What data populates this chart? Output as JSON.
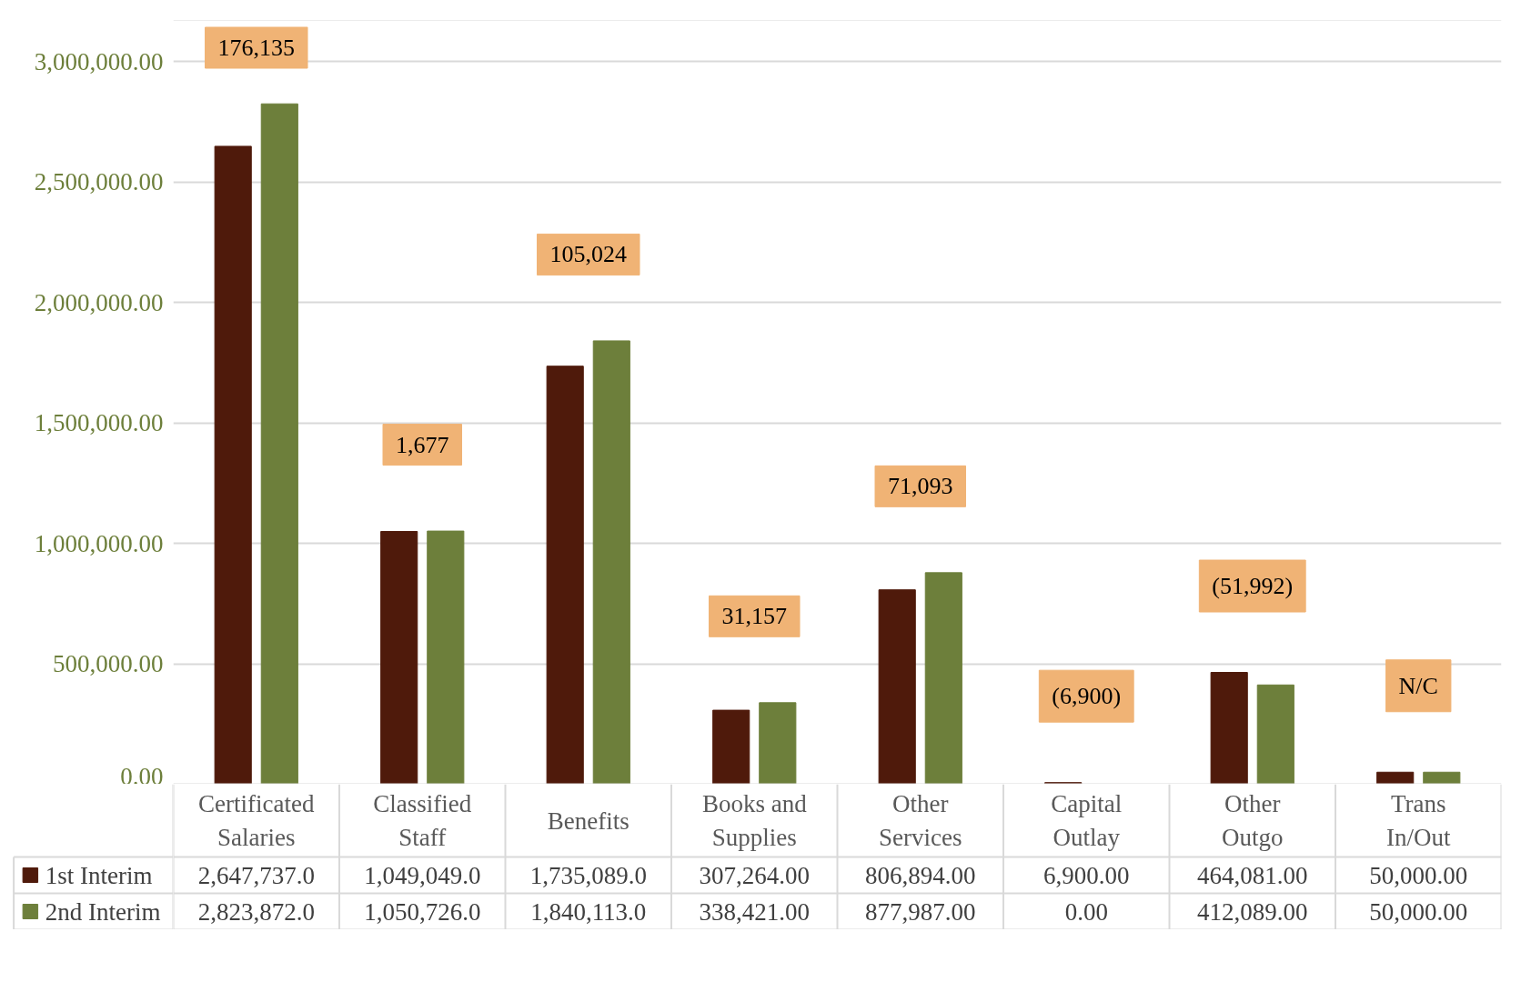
{
  "chart_data": {
    "type": "bar",
    "categories": [
      "Certificated Salaries",
      "Classified Staff",
      "Benefits",
      "Books and Supplies",
      "Other Services",
      "Capital Outlay",
      "Other Outgo",
      "Trans In/Out"
    ],
    "series": [
      {
        "name": "1st Interim",
        "color": "#4f1a0b",
        "values": [
          2647737,
          1049049,
          1735089,
          307264,
          806894,
          6900,
          464081,
          50000
        ],
        "value_labels": [
          "2,647,737.0",
          "1,049,049.0",
          "1,735,089.0",
          "307,264.00",
          "806,894.00",
          "6,900.00",
          "464,081.00",
          "50,000.00"
        ]
      },
      {
        "name": "2nd Interim",
        "color": "#6d7f3b",
        "values": [
          2823872,
          1050726,
          1840113,
          338421,
          877987,
          0,
          412089,
          50000
        ],
        "value_labels": [
          "2,823,872.0",
          "1,050,726.0",
          "1,840,113.0",
          "338,421.00",
          "877,987.00",
          "0.00",
          "412,089.00",
          "50,000.00"
        ]
      }
    ],
    "ylim": [
      0,
      3170000
    ],
    "yticks": [
      {
        "value": 0,
        "label": "0.00"
      },
      {
        "value": 500000,
        "label": "500,000.00"
      },
      {
        "value": 1000000,
        "label": "1,000,000.00"
      },
      {
        "value": 1500000,
        "label": "1,500,000.00"
      },
      {
        "value": 2000000,
        "label": "2,000,000.00"
      },
      {
        "value": 2500000,
        "label": "2,500,000.00"
      },
      {
        "value": 3000000,
        "label": "3,000,000.00"
      }
    ],
    "grid": "y",
    "legend": "bottom",
    "annotations": [
      "176,135",
      "1,677",
      "105,024",
      "31,157",
      "71,093",
      "(6,900)",
      "(51,992)",
      "N/C"
    ]
  }
}
